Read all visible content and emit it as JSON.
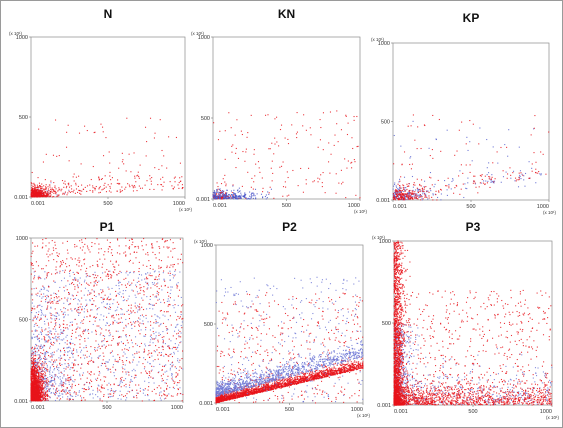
{
  "figure": {
    "background": "#ffffff"
  },
  "chart_data": [
    {
      "type": "scatter",
      "title": "N",
      "xlim": [
        0.001,
        1000
      ],
      "ylim": [
        0.001,
        1000
      ],
      "x_ticks": [
        "0.001",
        "500",
        "1000"
      ],
      "y_ticks": [
        "0.001",
        "500",
        "1000"
      ],
      "x_unit": "(x 10¹)",
      "y_unit": "(x 10¹)",
      "series": [
        {
          "color": "#e8141b",
          "points": 700
        },
        {
          "color": "#7f86d8",
          "points": 40
        }
      ],
      "note": "dense red cluster near origin (x 0-150, y 0-70) with sparse spread to x 1000, y 150"
    },
    {
      "type": "scatter",
      "title": "KN",
      "xlim": [
        0.001,
        1000
      ],
      "ylim": [
        0.001,
        1000
      ],
      "x_ticks": [
        "0.001",
        "500",
        "1000"
      ],
      "y_ticks": [
        "0.001",
        "500",
        "1000"
      ],
      "x_unit": "(x 10¹)",
      "y_unit": "(x 10¹)",
      "series": [
        {
          "color": "#e8141b",
          "points": 260
        },
        {
          "color": "#4a56c8",
          "points": 240
        }
      ],
      "note": "blue-dominated cluster along baseline x 0-400, y 0-60; sparse scatter up to y 500"
    },
    {
      "type": "scatter",
      "title": "KP",
      "xlim": [
        0.001,
        1000
      ],
      "ylim": [
        0.001,
        1000
      ],
      "x_ticks": [
        "0.001",
        "500",
        "1000"
      ],
      "y_ticks": [
        "0.001",
        "500",
        "1000"
      ],
      "x_unit": "(x 10¹)",
      "y_unit": "(x 10¹)",
      "series": [
        {
          "color": "#e8141b",
          "points": 330
        },
        {
          "color": "#5b65d0",
          "points": 260
        }
      ],
      "note": "mixed cluster near origin x 0-200, y 0-120 with diagonal spread to x 900"
    },
    {
      "type": "scatter",
      "title": "P1",
      "xlim": [
        0.001,
        1000
      ],
      "ylim": [
        0.001,
        1000
      ],
      "x_ticks": [
        "0.001",
        "500",
        "1000"
      ],
      "y_ticks": [
        "0.001",
        "500",
        "1000"
      ],
      "x_unit": "",
      "y_unit": "",
      "series": [
        {
          "color": "#e8141b",
          "points": 2600
        },
        {
          "color": "#6f78d6",
          "points": 1100
        }
      ],
      "note": "very dense red mass at x 0-100, y 0-150; broad scatter filling the plot up to y 1000"
    },
    {
      "type": "scatter",
      "title": "P2",
      "xlim": [
        0.001,
        1000
      ],
      "ylim": [
        0.001,
        1000
      ],
      "x_ticks": [
        "0.001",
        "500",
        "1000"
      ],
      "y_ticks": [
        "0.001",
        "500",
        "1000"
      ],
      "x_unit": "(x 10¹)",
      "y_unit": "(x 10¹)",
      "series": [
        {
          "color": "#e8141b",
          "points": 2600
        },
        {
          "color": "#6f78d6",
          "points": 1300
        }
      ],
      "note": "dense diagonal band rising from origin to x 1000, y 300; blue above red"
    },
    {
      "type": "scatter",
      "title": "P3",
      "xlim": [
        0.001,
        1000
      ],
      "ylim": [
        0.001,
        1000
      ],
      "x_ticks": [
        "0.001",
        "500",
        "1000"
      ],
      "y_ticks": [
        "0.001",
        "500",
        "1000"
      ],
      "x_unit": "(x 10¹)",
      "y_unit": "(x 10¹)",
      "series": [
        {
          "color": "#e8141b",
          "points": 3600
        },
        {
          "color": "#6f78d6",
          "points": 700
        }
      ],
      "note": "very dense red vertical column at x 0-80 reaching y 1000, plus spread along baseline"
    }
  ]
}
